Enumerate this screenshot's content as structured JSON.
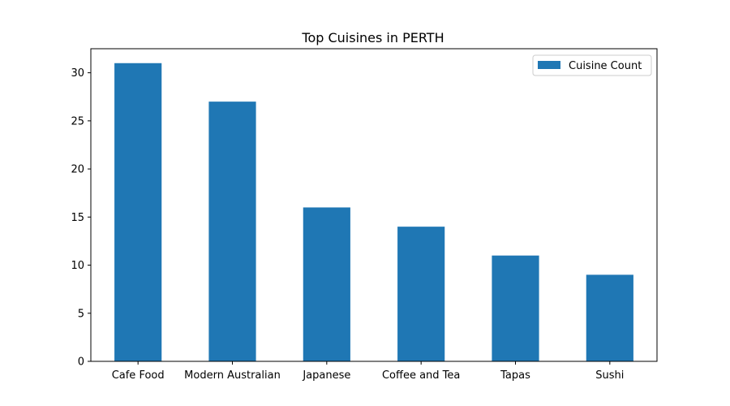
{
  "chart_data": {
    "type": "bar",
    "title": "Top Cuisines in PERTH",
    "categories": [
      "Cafe Food",
      "Modern Australian",
      "Japanese",
      "Coffee and Tea",
      "Tapas",
      "Sushi"
    ],
    "series": [
      {
        "name": "Cuisine Count",
        "values": [
          31,
          27,
          16,
          14,
          11,
          9
        ],
        "color": "#1f77b4"
      }
    ],
    "xlabel": "",
    "ylabel": "",
    "ylim": [
      0,
      32.5
    ],
    "yticks": [
      0,
      5,
      10,
      15,
      20,
      25,
      30
    ],
    "grid": false,
    "legend": "top-right"
  }
}
